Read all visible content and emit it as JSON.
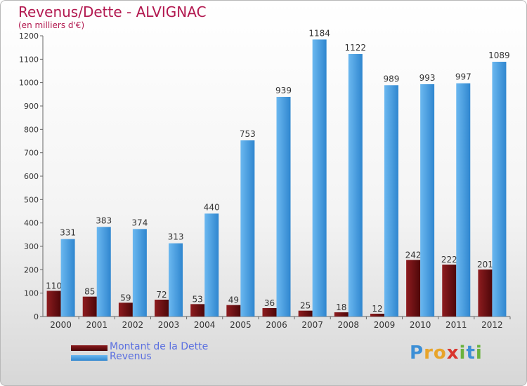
{
  "title": "Revenus/Dette - ALVIGNAC",
  "subtitle": "(en milliers d'€)",
  "colors": {
    "title": "#b2184f",
    "dette": "#7a0f12",
    "revenus": "#3a9ae3",
    "legend_text": "#5a6fe0"
  },
  "chart_data": {
    "type": "bar",
    "title": "Revenus/Dette - ALVIGNAC",
    "ylabel": "(en milliers d'€)",
    "xlabel": "",
    "ylim": [
      0,
      1200
    ],
    "yticks": [
      0,
      100,
      200,
      300,
      400,
      500,
      600,
      700,
      800,
      900,
      1000,
      1100,
      1200
    ],
    "grid": false,
    "legend_position": "bottom-left",
    "categories": [
      "2000",
      "2001",
      "2002",
      "2003",
      "2004",
      "2005",
      "2006",
      "2007",
      "2008",
      "2009",
      "2010",
      "2011",
      "2012"
    ],
    "series": [
      {
        "name": "Montant de la Dette",
        "color": "#7a0f12",
        "values": [
          110,
          85,
          59,
          72,
          53,
          49,
          36,
          25,
          18,
          12,
          242,
          222,
          201
        ]
      },
      {
        "name": "Revenus",
        "color": "#3a9ae3",
        "values": [
          331,
          383,
          374,
          313,
          440,
          753,
          939,
          1184,
          1122,
          989,
          993,
          997,
          1089
        ]
      }
    ]
  },
  "legend": {
    "dette_label": "Montant de la Dette",
    "revenus_label": "Revenus"
  },
  "logo": {
    "text": "Proxiti",
    "letters": [
      "P",
      "r",
      "o",
      "x",
      "i",
      "t",
      "i"
    ]
  }
}
